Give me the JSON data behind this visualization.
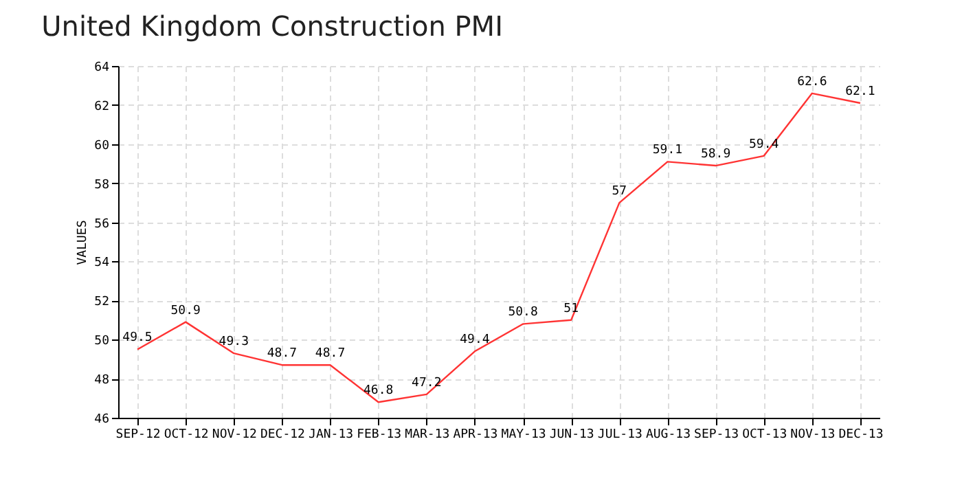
{
  "chart_data": {
    "type": "line",
    "title": "United Kingdom Construction PMI",
    "ylabel": "VALUES",
    "categories": [
      "SEP-12",
      "OCT-12",
      "NOV-12",
      "DEC-12",
      "JAN-13",
      "FEB-13",
      "MAR-13",
      "APR-13",
      "MAY-13",
      "JUN-13",
      "JUL-13",
      "AUG-13",
      "SEP-13",
      "OCT-13",
      "NOV-13",
      "DEC-13"
    ],
    "series": [
      {
        "color": "#ff3333",
        "values": [
          49.5,
          50.9,
          49.3,
          48.7,
          48.7,
          46.8,
          47.2,
          49.4,
          50.8,
          51,
          57,
          59.1,
          58.9,
          59.4,
          62.6,
          62.1
        ]
      }
    ],
    "ylim": [
      46,
      64
    ],
    "yticks": [
      46,
      48,
      50,
      52,
      54,
      56,
      58,
      60,
      62,
      64
    ],
    "grid": true,
    "data_labels": true,
    "marker": "none",
    "line_style": "solid"
  }
}
